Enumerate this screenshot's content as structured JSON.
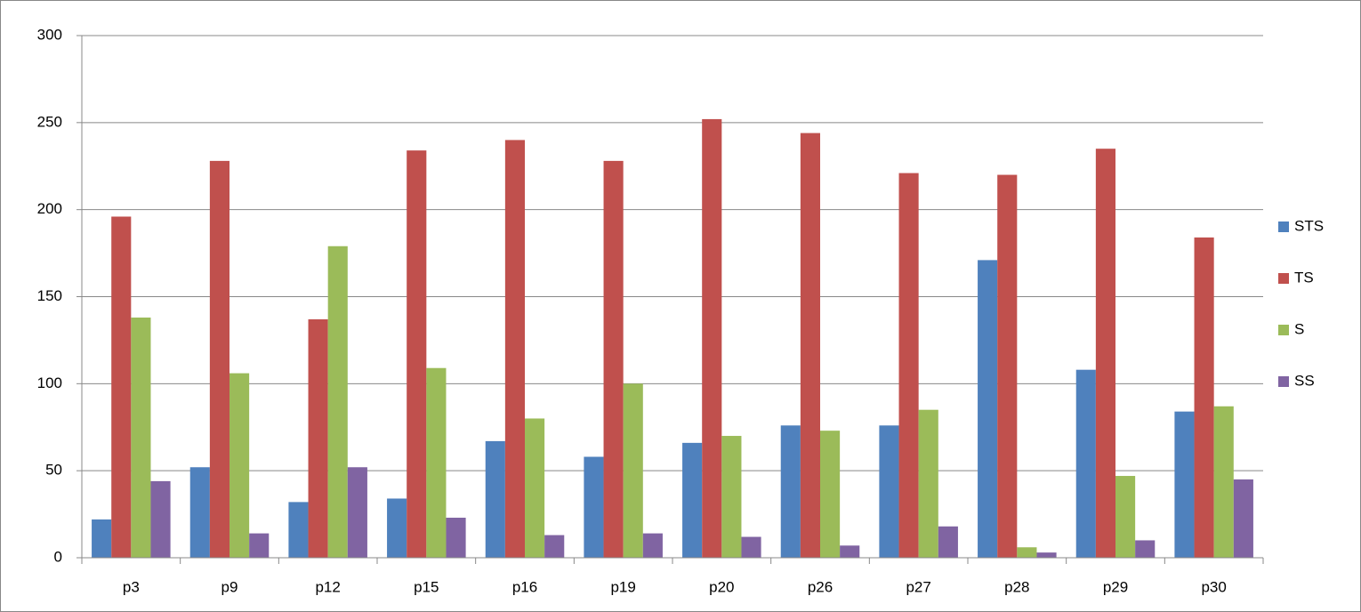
{
  "chart_data": {
    "type": "bar",
    "categories": [
      "p3",
      "p9",
      "p12",
      "p15",
      "p16",
      "p19",
      "p20",
      "p26",
      "p27",
      "p28",
      "p29",
      "p30"
    ],
    "series": [
      {
        "name": "STS",
        "color": "#4f81bd",
        "values": [
          22,
          52,
          32,
          34,
          67,
          58,
          66,
          76,
          76,
          171,
          108,
          84
        ]
      },
      {
        "name": "TS",
        "color": "#c0504d",
        "values": [
          196,
          228,
          137,
          234,
          240,
          228,
          252,
          244,
          221,
          220,
          235,
          184
        ]
      },
      {
        "name": "S",
        "color": "#9bbb59",
        "values": [
          138,
          106,
          179,
          109,
          80,
          100,
          70,
          73,
          85,
          6,
          47,
          87
        ]
      },
      {
        "name": "SS",
        "color": "#8064a2",
        "values": [
          44,
          14,
          52,
          23,
          13,
          14,
          12,
          7,
          18,
          3,
          10,
          45
        ]
      }
    ],
    "ylim": [
      0,
      300
    ],
    "yticks": [
      0,
      50,
      100,
      150,
      200,
      250,
      300
    ],
    "grid": true,
    "legend": "right"
  }
}
